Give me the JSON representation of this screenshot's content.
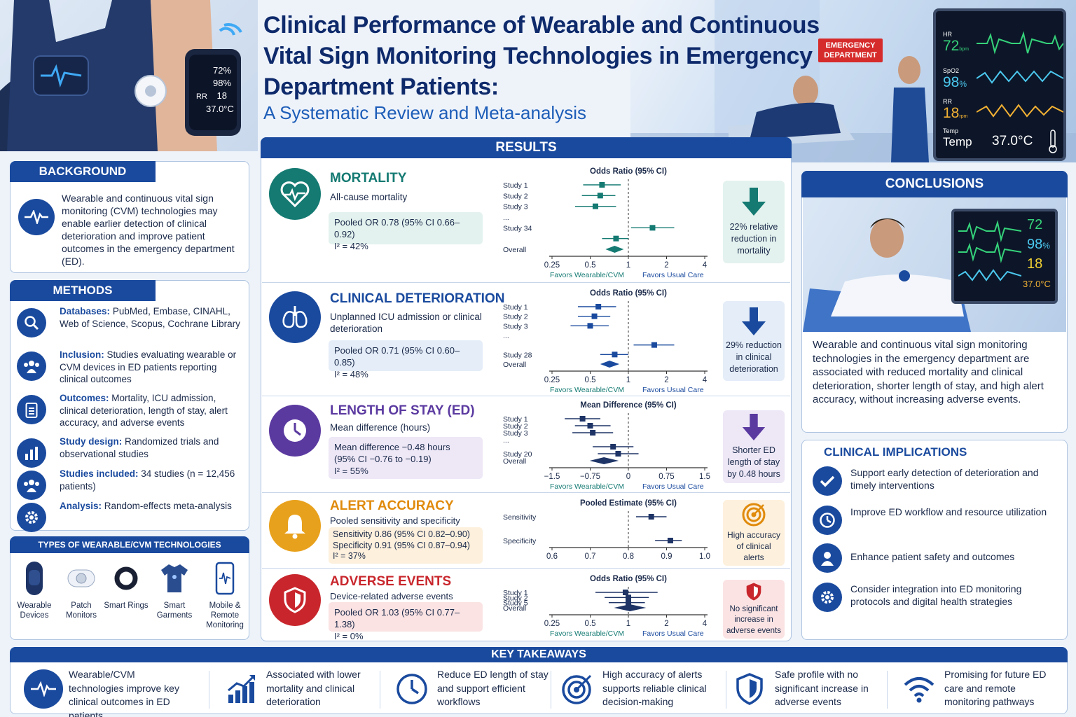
{
  "header": {
    "title": "Clinical Performance of Wearable and Continuous Vital Sign Monitoring Technologies in Emergency Department Patients:",
    "subtitle": "A Systematic Review and Meta-analysis"
  },
  "hero": {
    "watch_readings": [
      "72%",
      "98%",
      "RR",
      "18",
      "37.0°C"
    ],
    "ed_sign": [
      "EMERGENCY",
      "DEPARTMENT"
    ],
    "monitor": {
      "hr_label": "HR",
      "hr_value": "72",
      "hr_unit": "bpm",
      "spo2_label": "SpO2",
      "spo2_value": "98",
      "spo2_unit": "%",
      "rr_label": "RR",
      "rr_value": "18",
      "rr_unit": "rpm",
      "temp_label": "Temp",
      "temp_name": "Temp",
      "temp_value": "37.0°C"
    }
  },
  "background": {
    "heading": "BACKGROUND",
    "text": "Wearable and continuous vital sign monitoring (CVM) technologies may enable earlier detection of clinical deterioration and improve patient outcomes in the emergency department (ED).",
    "icon": "heartbeat-icon"
  },
  "methods": {
    "heading": "METHODS",
    "items": [
      {
        "label": "Databases:",
        "text": "PubMed, Embase, CINAHL, Web of Science, Scopus, Cochrane Library",
        "icon": "search-icon"
      },
      {
        "label": "Inclusion:",
        "text": "Studies evaluating wearable or CVM devices in ED patients reporting clinical outcomes",
        "icon": "people-icon"
      },
      {
        "label": "Outcomes:",
        "text": "Mortality, ICU admission, clinical deterioration, length of stay, alert accuracy, and adverse events",
        "icon": "clipboard-icon"
      },
      {
        "label": "Study design:",
        "text": "Randomized trials and observational studies",
        "icon": "bar-chart-icon"
      },
      {
        "label": "Studies included:",
        "text": "34 studies (n = 12,456 patients)",
        "icon": "group-icon"
      },
      {
        "label": "Analysis:",
        "text": "Random-effects meta-analysis",
        "icon": "gear-icon"
      }
    ]
  },
  "tech_types": {
    "heading": "TYPES OF WEARABLE/CVM TECHNOLOGIES",
    "items": [
      {
        "label": "Wearable Devices",
        "icon": "wristband-icon"
      },
      {
        "label": "Patch Monitors",
        "icon": "patch-icon"
      },
      {
        "label": "Smart Rings",
        "icon": "ring-icon"
      },
      {
        "label": "Smart Garments",
        "icon": "shirt-icon"
      },
      {
        "label": "Mobile & Remote Monitoring",
        "icon": "phone-icon"
      }
    ]
  },
  "results": {
    "heading": "RESULTS",
    "sections": [
      {
        "title": "MORTALITY",
        "sub": "All-cause mortality",
        "box": [
          "Pooled OR 0.78 (95% CI 0.66–0.92)",
          "I² = 42%"
        ],
        "side": "22% relative reduction in mortality",
        "color": "#147a72",
        "icon": "heart-pulse-icon"
      },
      {
        "title": "CLINICAL DETERIORATION",
        "sub": "Unplanned ICU admission or clinical deterioration",
        "box": [
          "Pooled OR 0.71 (95% CI 0.60–0.85)",
          "I² = 48%"
        ],
        "side": "29% reduction in clinical deterioration",
        "color": "#1a4a9e",
        "icon": "lungs-icon"
      },
      {
        "title": "LENGTH OF STAY (ED)",
        "sub": "Mean difference (hours)",
        "box": [
          "Mean difference −0.48 hours",
          "(95% CI −0.76 to −0.19)",
          "I² = 55%"
        ],
        "side": "Shorter ED length of stay by 0.48 hours",
        "color": "#5b3aa0",
        "icon": "clock-icon"
      },
      {
        "title": "ALERT ACCURACY",
        "sub": "Pooled sensitivity and specificity",
        "box": [
          "Sensitivity 0.86 (95% CI 0.82–0.90)",
          "Specificity 0.91 (95% CI 0.87–0.94)",
          "I² = 37%"
        ],
        "side": "High accuracy of clinical alerts",
        "color": "#e08a0c",
        "icon": "bell-icon"
      },
      {
        "title": "ADVERSE EVENTS",
        "sub": "Device-related adverse events",
        "box": [
          "Pooled OR 1.03 (95% CI 0.77–1.38)",
          "I² = 0%"
        ],
        "side": "No significant increase in adverse events",
        "color": "#c8262c",
        "icon": "shield-icon"
      }
    ]
  },
  "chart_data": [
    {
      "type": "forest",
      "title": "Odds Ratio (95% CI)",
      "scale": "log",
      "xticks": [
        "0.25",
        "0.5",
        "1",
        "2",
        "4"
      ],
      "xtick_values": [
        0.25,
        0.5,
        1,
        2,
        4
      ],
      "xlim": [
        0.25,
        4
      ],
      "null_value": 1,
      "favors_left": "Favors Wearable/CVM",
      "favors_right": "Favors Usual Care",
      "studies": [
        {
          "label": "Study 1",
          "est": 0.62,
          "lo": 0.44,
          "hi": 0.87
        },
        {
          "label": "Study 2",
          "est": 0.6,
          "lo": 0.43,
          "hi": 0.79
        },
        {
          "label": "Study 3",
          "est": 0.55,
          "lo": 0.38,
          "hi": 0.8
        },
        {
          "label": "...",
          "est": null,
          "lo": null,
          "hi": null
        },
        {
          "label": "Study 34",
          "est": 1.55,
          "lo": 1.05,
          "hi": 2.3
        },
        {
          "label": "",
          "est": 0.8,
          "lo": 0.62,
          "hi": 1.0
        },
        {
          "label": "Overall",
          "est": 0.78,
          "lo": 0.66,
          "hi": 0.92,
          "pooled": true
        }
      ]
    },
    {
      "type": "forest",
      "title": "Odds Ratio (95% CI)",
      "scale": "log",
      "xticks": [
        "0.25",
        "0.5",
        "1",
        "2",
        "4"
      ],
      "xtick_values": [
        0.25,
        0.5,
        1,
        2,
        4
      ],
      "xlim": [
        0.25,
        4
      ],
      "null_value": 1,
      "favors_left": "Favors Wearable/CVM",
      "favors_right": "Favors Usual Care",
      "studies": [
        {
          "label": "Study 1",
          "est": 0.58,
          "lo": 0.4,
          "hi": 0.8
        },
        {
          "label": "Study 2",
          "est": 0.54,
          "lo": 0.4,
          "hi": 0.72
        },
        {
          "label": "Study 3",
          "est": 0.5,
          "lo": 0.35,
          "hi": 0.7
        },
        {
          "label": "...",
          "est": null,
          "lo": null,
          "hi": null
        },
        {
          "label": "",
          "est": 1.6,
          "lo": 1.1,
          "hi": 2.3
        },
        {
          "label": "Study 28",
          "est": 0.78,
          "lo": 0.6,
          "hi": 1.0
        },
        {
          "label": "Overall",
          "est": 0.71,
          "lo": 0.6,
          "hi": 0.85,
          "pooled": true
        }
      ]
    },
    {
      "type": "forest",
      "title": "Mean Difference (95% CI)",
      "scale": "linear",
      "xticks": [
        "−1.5",
        "−0.75",
        "0",
        "0.75",
        "1.5"
      ],
      "xtick_values": [
        -1.5,
        -0.75,
        0,
        0.75,
        1.5
      ],
      "xlim": [
        -1.5,
        1.5
      ],
      "null_value": 0,
      "favors_left": "Favors Wearable/CVM",
      "favors_right": "Favors Usual Care",
      "studies": [
        {
          "label": "Study 1",
          "est": -0.9,
          "lo": -1.25,
          "hi": -0.55
        },
        {
          "label": "Study 2",
          "est": -0.75,
          "lo": -1.05,
          "hi": -0.35
        },
        {
          "label": "Study 3",
          "est": -0.7,
          "lo": -1.1,
          "hi": -0.3
        },
        {
          "label": "...",
          "est": null,
          "lo": null,
          "hi": null
        },
        {
          "label": "",
          "est": -0.3,
          "lo": -0.7,
          "hi": 0.1
        },
        {
          "label": "Study 20",
          "est": -0.2,
          "lo": -0.6,
          "hi": 0.2
        },
        {
          "label": "Overall",
          "est": -0.48,
          "lo": -0.76,
          "hi": -0.19,
          "pooled": true
        }
      ]
    },
    {
      "type": "forest",
      "title": "Pooled Estimate (95% CI)",
      "scale": "linear",
      "xticks": [
        "0.6",
        "0.7",
        "0.8",
        "0.9",
        "1.0"
      ],
      "xtick_values": [
        0.6,
        0.7,
        0.8,
        0.9,
        1.0
      ],
      "xlim": [
        0.6,
        1.0
      ],
      "null_value": 0.8,
      "favors_left": "",
      "favors_right": "",
      "studies": [
        {
          "label": "Sensitivity",
          "est": 0.86,
          "lo": 0.82,
          "hi": 0.9
        },
        {
          "label": "Specificity",
          "est": 0.91,
          "lo": 0.87,
          "hi": 0.94
        }
      ]
    },
    {
      "type": "forest",
      "title": "Odds Ratio (95% CI)",
      "scale": "log",
      "xticks": [
        "0.25",
        "0.5",
        "1",
        "2",
        "4"
      ],
      "xtick_values": [
        0.25,
        0.5,
        1,
        2,
        4
      ],
      "xlim": [
        0.25,
        4
      ],
      "null_value": 1,
      "favors_left": "Favors Wearable/CVM",
      "favors_right": "Favors Usual Care",
      "studies": [
        {
          "label": "Study 1",
          "est": 0.95,
          "lo": 0.55,
          "hi": 1.7
        },
        {
          "label": "Study 2",
          "est": 1.0,
          "lo": 0.65,
          "hi": 1.45
        },
        {
          "label": "Study 5",
          "est": 1.0,
          "lo": 0.7,
          "hi": 1.35
        },
        {
          "label": "Overall",
          "est": 1.03,
          "lo": 0.77,
          "hi": 1.38,
          "pooled": true
        }
      ]
    }
  ],
  "conclusions": {
    "heading": "CONCLUSIONS",
    "monitor_values": [
      "72",
      "98",
      "%",
      "18",
      "37.0°C"
    ],
    "text": "Wearable and continuous vital sign monitoring technologies in the emergency department are associated with reduced mortality and clinical deterioration, shorter length of stay, and high alert accuracy, without increasing adverse events."
  },
  "implications": {
    "heading": "CLINICAL IMPLICATIONS",
    "items": [
      {
        "text": "Support early detection of deterioration and timely interventions",
        "icon": "check-icon"
      },
      {
        "text": "Improve ED workflow and resource utilization",
        "icon": "clock-icon"
      },
      {
        "text": "Enhance patient safety and outcomes",
        "icon": "person-icon"
      },
      {
        "text": "Consider integration into ED monitoring protocols and digital health strategies",
        "icon": "gear-icon"
      }
    ]
  },
  "takeaways": {
    "heading": "KEY TAKEAWAYS",
    "items": [
      {
        "text": "Wearable/CVM technologies improve key clinical outcomes in ED patients",
        "icon": "heartbeat-icon"
      },
      {
        "text": "Associated with lower mortality and clinical deterioration",
        "icon": "trend-up-icon"
      },
      {
        "text": "Reduce ED length of stay and support efficient workflows",
        "icon": "clock-icon"
      },
      {
        "text": "High accuracy of alerts supports reliable clinical decision-making",
        "icon": "target-icon"
      },
      {
        "text": "Safe profile with no significant increase in adverse events",
        "icon": "shield-icon"
      },
      {
        "text": "Promising for future ED care and remote monitoring pathways",
        "icon": "wifi-icon"
      }
    ]
  },
  "colors": {
    "navy": "#0e2a6b",
    "primary": "#1a4a9e",
    "teal": "#147a72",
    "purple": "#5b3aa0",
    "orange": "#e08a0c",
    "red": "#c8262c"
  }
}
